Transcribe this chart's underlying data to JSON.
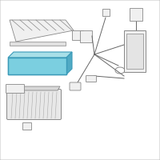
{
  "bg_color": "#ffffff",
  "border_color": "#c8c8c8",
  "highlight_fill": "#7bcfe0",
  "highlight_edge": "#3a9ab8",
  "highlight_top": "#a8dfe8",
  "highlight_side": "#50aac4",
  "part_fill": "#f0f0f0",
  "part_edge": "#888888",
  "line_color": "#666666",
  "rack_fill": "#f0f0f0",
  "rack_edge": "#888888",
  "figsize": [
    2.0,
    2.0
  ],
  "dpi": 100
}
